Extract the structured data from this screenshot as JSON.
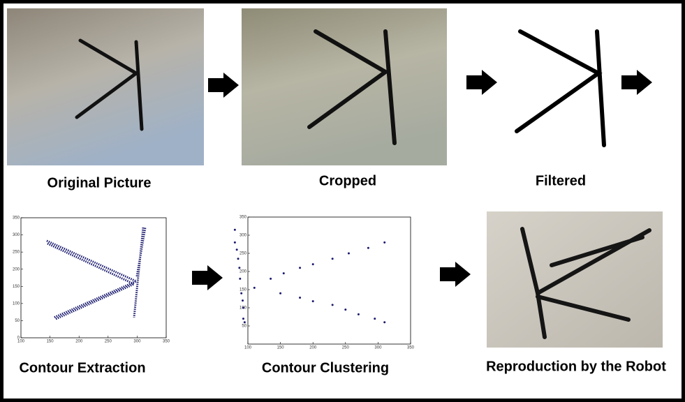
{
  "captions": [
    "Original Picture",
    "Cropped",
    "Filtered",
    "Contour Extraction",
    "Contour Clustering",
    "Reproduction by the Robot"
  ],
  "plots": [
    {
      "xlim": [
        100,
        350
      ],
      "ylim": [
        0,
        350
      ],
      "xticks": [
        100,
        150,
        200,
        250,
        300,
        350
      ],
      "yticks": [
        0,
        50,
        100,
        150,
        200,
        250,
        300,
        350
      ]
    },
    {
      "type": "scatter",
      "xlim": [
        100,
        350
      ],
      "ylim": [
        0,
        350
      ],
      "xticks": [
        100,
        150,
        200,
        250,
        300,
        350
      ],
      "yticks": [
        50,
        100,
        150,
        200,
        250,
        300,
        350
      ],
      "color": "#1a1a6e",
      "x": [
        80,
        80,
        83,
        85,
        87,
        88,
        90,
        92,
        93,
        93,
        95,
        110,
        135,
        155,
        180,
        200,
        230,
        255,
        285,
        310,
        150,
        180,
        200,
        230,
        250,
        270,
        295,
        310
      ],
      "y": [
        315,
        280,
        260,
        235,
        210,
        180,
        140,
        120,
        100,
        70,
        60,
        155,
        180,
        195,
        210,
        220,
        235,
        250,
        265,
        280,
        140,
        128,
        118,
        108,
        95,
        82,
        70,
        60
      ]
    }
  ]
}
